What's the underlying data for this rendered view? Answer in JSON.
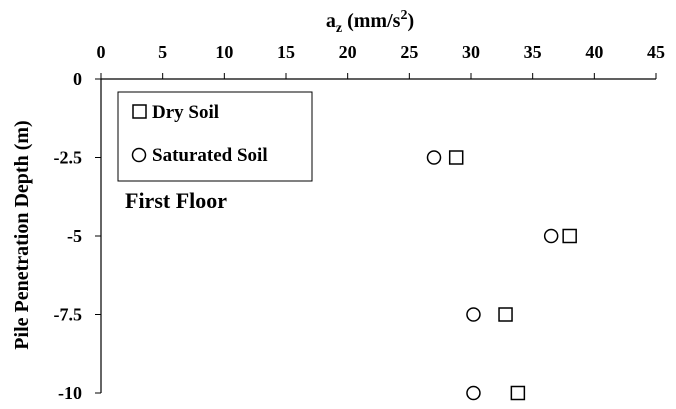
{
  "chart_data": {
    "type": "scatter",
    "xlabel": "a",
    "xlabel_sub": "z",
    "xlabel_unit_open": " (mm/s",
    "xlabel_sup": "2",
    "xlabel_unit_close": ")",
    "ylabel": "Pile Penetration Depth (m)",
    "xlim": [
      0,
      45
    ],
    "ylim": [
      -10,
      0
    ],
    "x_ticks": [
      0,
      5,
      10,
      15,
      20,
      25,
      30,
      35,
      40,
      45
    ],
    "y_ticks": [
      0,
      -2.5,
      -5,
      -7.5,
      -10
    ],
    "x_axis_position": "top",
    "grid": false,
    "legend_position": "top-left",
    "annotation": "First Floor",
    "series": [
      {
        "name": "Dry Soil",
        "marker": "square",
        "color": "#000000",
        "points": [
          {
            "x": 28.8,
            "y": -2.5
          },
          {
            "x": 38.0,
            "y": -5
          },
          {
            "x": 32.8,
            "y": -7.5
          },
          {
            "x": 33.8,
            "y": -10
          }
        ]
      },
      {
        "name": "Saturated Soil",
        "marker": "circle",
        "color": "#000000",
        "points": [
          {
            "x": 27.0,
            "y": -2.5
          },
          {
            "x": 36.5,
            "y": -5
          },
          {
            "x": 30.2,
            "y": -7.5
          },
          {
            "x": 30.2,
            "y": -10
          }
        ]
      }
    ]
  }
}
